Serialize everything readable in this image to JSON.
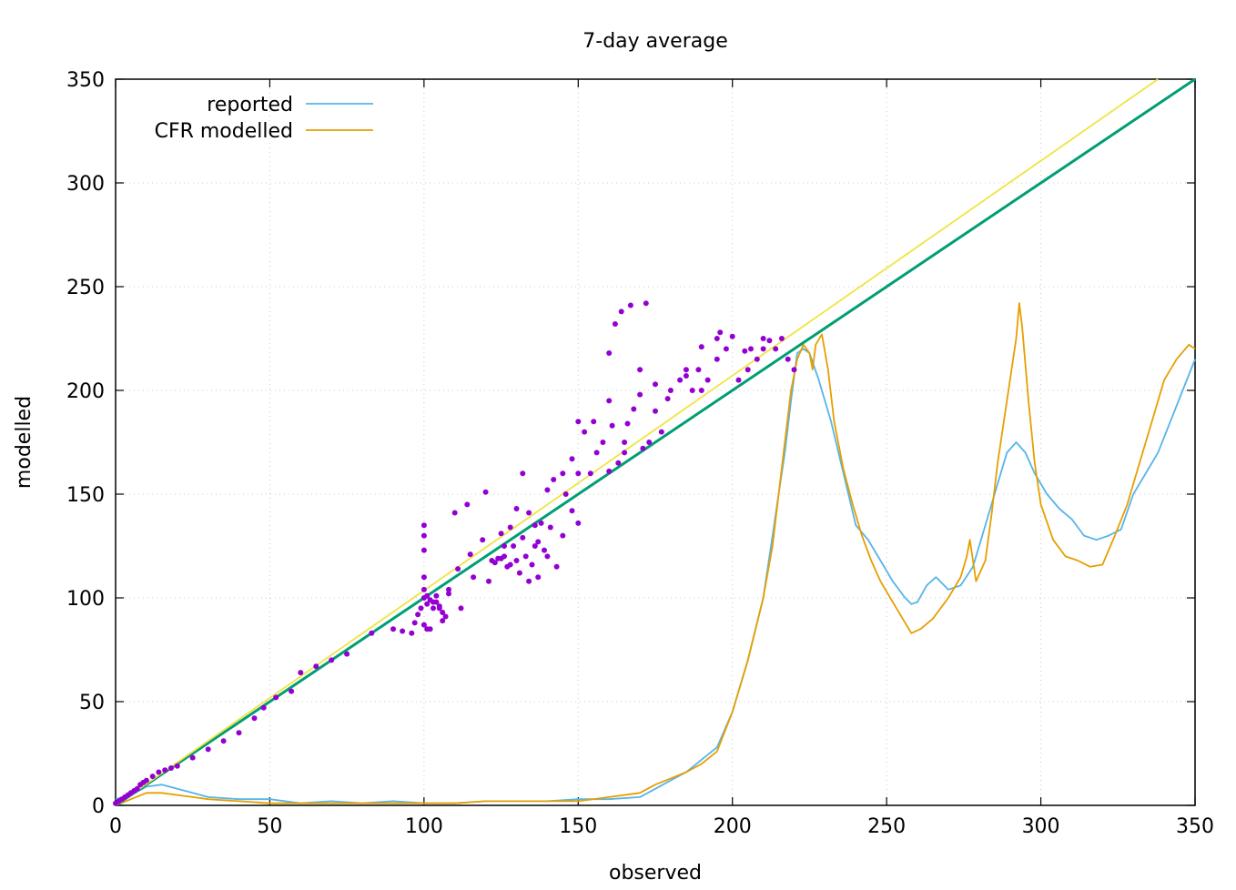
{
  "chart_data": {
    "type": "line",
    "title": "7-day average",
    "xlabel": "observed",
    "ylabel": "modelled",
    "xlim": [
      0,
      350
    ],
    "ylim": [
      0,
      350
    ],
    "grid": true,
    "legend_position": "top-left",
    "x_ticks": [
      0,
      50,
      100,
      150,
      200,
      250,
      300,
      350
    ],
    "y_ticks": [
      0,
      50,
      100,
      150,
      200,
      250,
      300,
      350
    ],
    "series": [
      {
        "name": "reported",
        "color": "#56b4e9",
        "x": [
          0,
          5,
          10,
          15,
          20,
          25,
          30,
          40,
          50,
          60,
          70,
          80,
          90,
          100,
          110,
          120,
          130,
          140,
          150,
          160,
          170,
          175,
          180,
          185,
          190,
          195,
          200,
          205,
          210,
          213,
          215,
          217,
          219,
          221,
          223,
          225,
          228,
          232,
          236,
          240,
          244,
          248,
          252,
          256,
          258,
          260,
          263,
          266,
          270,
          274,
          278,
          282,
          286,
          289,
          292,
          295,
          298,
          302,
          306,
          310,
          314,
          318,
          322,
          326,
          330,
          334,
          338,
          342,
          346,
          350
        ],
        "y": [
          3,
          5,
          9,
          10,
          8,
          6,
          4,
          3,
          3,
          1,
          2,
          1,
          2,
          1,
          1,
          2,
          2,
          2,
          3,
          3,
          4,
          8,
          12,
          16,
          22,
          28,
          45,
          70,
          100,
          130,
          150,
          170,
          195,
          218,
          220,
          218,
          205,
          185,
          160,
          135,
          128,
          118,
          108,
          100,
          97,
          98,
          106,
          110,
          104,
          106,
          115,
          135,
          155,
          170,
          175,
          170,
          160,
          150,
          143,
          138,
          130,
          128,
          130,
          133,
          150,
          160,
          170,
          185,
          200,
          215
        ]
      },
      {
        "name": "CFR modelled",
        "color": "#e69f00",
        "x": [
          0,
          5,
          10,
          15,
          20,
          25,
          30,
          40,
          50,
          60,
          70,
          80,
          90,
          100,
          110,
          120,
          130,
          140,
          150,
          160,
          170,
          175,
          180,
          185,
          190,
          195,
          200,
          205,
          210,
          213,
          215,
          217,
          219,
          221,
          223,
          225,
          226,
          227,
          229,
          231,
          233,
          236,
          239,
          242,
          245,
          248,
          252,
          256,
          258,
          261,
          265,
          270,
          274,
          276,
          277,
          279,
          282,
          284,
          286,
          288,
          290,
          292,
          293,
          294,
          296,
          298,
          300,
          304,
          308,
          312,
          316,
          320,
          324,
          328,
          332,
          336,
          340,
          344,
          348,
          350
        ],
        "y": [
          0,
          3,
          6,
          6,
          5,
          4,
          3,
          2,
          1,
          1,
          1,
          1,
          1,
          1,
          1,
          2,
          2,
          2,
          2,
          4,
          6,
          10,
          13,
          16,
          20,
          26,
          45,
          70,
          100,
          125,
          150,
          175,
          200,
          215,
          222,
          218,
          210,
          222,
          227,
          210,
          185,
          162,
          145,
          130,
          118,
          108,
          98,
          88,
          83,
          85,
          90,
          100,
          110,
          120,
          128,
          108,
          118,
          140,
          165,
          185,
          205,
          225,
          242,
          230,
          195,
          165,
          145,
          128,
          120,
          118,
          115,
          116,
          130,
          145,
          165,
          185,
          205,
          215,
          222,
          220
        ]
      },
      {
        "name": "",
        "color": "#009e73",
        "x": [
          0,
          350
        ],
        "y": [
          0,
          350
        ]
      },
      {
        "name": "",
        "color": "#f0e442",
        "x": [
          0,
          338
        ],
        "y": [
          0,
          350
        ]
      }
    ],
    "scatter": {
      "color": "#9400d3",
      "x": [
        0,
        1,
        2,
        3,
        4,
        5,
        6,
        7,
        8,
        9,
        10,
        12,
        14,
        16,
        18,
        20,
        25,
        30,
        35,
        40,
        45,
        48,
        52,
        57,
        60,
        65,
        70,
        75,
        83,
        90,
        93,
        96,
        97,
        98,
        99,
        100,
        100,
        100,
        100,
        100,
        100,
        101,
        101,
        102,
        103,
        104,
        105,
        106,
        107,
        108,
        110,
        111,
        114,
        116,
        119,
        120,
        122,
        123,
        125,
        126,
        127,
        128,
        129,
        130,
        131,
        132,
        134,
        135,
        136,
        137,
        138,
        140,
        142,
        143,
        145,
        146,
        148,
        150,
        150,
        152,
        154,
        156,
        158,
        160,
        161,
        163,
        165,
        166,
        168,
        170,
        171,
        173,
        175,
        177,
        179,
        180,
        183,
        185,
        187,
        189,
        190,
        192,
        195,
        196,
        198,
        200,
        202,
        204,
        206,
        208,
        210,
        212,
        214,
        216,
        218,
        220,
        150,
        155,
        160,
        165,
        170,
        175,
        185,
        190,
        195,
        205,
        210,
        100,
        101,
        102,
        103,
        104,
        105,
        106,
        130,
        132,
        134,
        136,
        140,
        145,
        148,
        160,
        162,
        164,
        167,
        172,
        128,
        125,
        121,
        115,
        112,
        108,
        124,
        126,
        133,
        137,
        139,
        141
      ],
      "y": [
        1,
        2,
        3,
        4,
        5,
        6,
        7,
        8,
        10,
        11,
        12,
        14,
        16,
        17,
        18,
        19,
        23,
        27,
        31,
        35,
        42,
        47,
        52,
        55,
        64,
        67,
        70,
        73,
        83,
        85,
        84,
        83,
        88,
        92,
        95,
        100,
        104,
        110,
        123,
        130,
        135,
        97,
        101,
        99,
        98,
        101,
        95,
        93,
        91,
        104,
        141,
        114,
        145,
        110,
        128,
        151,
        118,
        117,
        119,
        120,
        115,
        116,
        125,
        118,
        112,
        129,
        108,
        116,
        125,
        110,
        136,
        152,
        157,
        115,
        160,
        150,
        167,
        160,
        136,
        180,
        160,
        170,
        175,
        161,
        183,
        165,
        170,
        184,
        191,
        198,
        172,
        175,
        190,
        180,
        196,
        200,
        205,
        210,
        200,
        210,
        221,
        205,
        215,
        228,
        220,
        226,
        205,
        219,
        220,
        215,
        220,
        224,
        220,
        225,
        215,
        210,
        185,
        185,
        195,
        175,
        210,
        203,
        207,
        200,
        225,
        210,
        225,
        87,
        85,
        85,
        95,
        98,
        96,
        89,
        143,
        160,
        141,
        135,
        120,
        130,
        142,
        218,
        232,
        238,
        241,
        242,
        134,
        131,
        108,
        121,
        95,
        102,
        119,
        125,
        120,
        127,
        123,
        134
      ]
    }
  }
}
